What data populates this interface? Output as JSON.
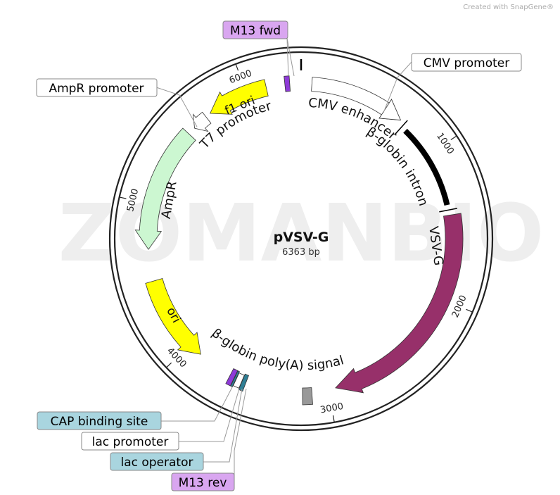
{
  "header": {
    "credit": "Created with SnapGene®"
  },
  "watermark": "ZOMANBIO",
  "plasmid": {
    "name": "pVSV-G",
    "size": "6363 bp"
  },
  "ticks": [
    "1000",
    "2000",
    "3000",
    "4000",
    "5000",
    "6000"
  ],
  "features": [
    {
      "label": "CMV enhancer"
    },
    {
      "label": "β-globin intron"
    },
    {
      "label": "VSV-G"
    },
    {
      "label": "β-globin poly(A) signal"
    },
    {
      "label": "ori"
    },
    {
      "label": "AmpR"
    },
    {
      "label": "T7 promoter"
    },
    {
      "label": "f1 ori"
    }
  ],
  "callouts": [
    {
      "label": "M13 fwd"
    },
    {
      "label": "CMV promoter"
    },
    {
      "label": "AmpR promoter"
    },
    {
      "label": "CAP binding site"
    },
    {
      "label": "lac promoter"
    },
    {
      "label": "lac operator"
    },
    {
      "label": "M13 rev"
    }
  ]
}
